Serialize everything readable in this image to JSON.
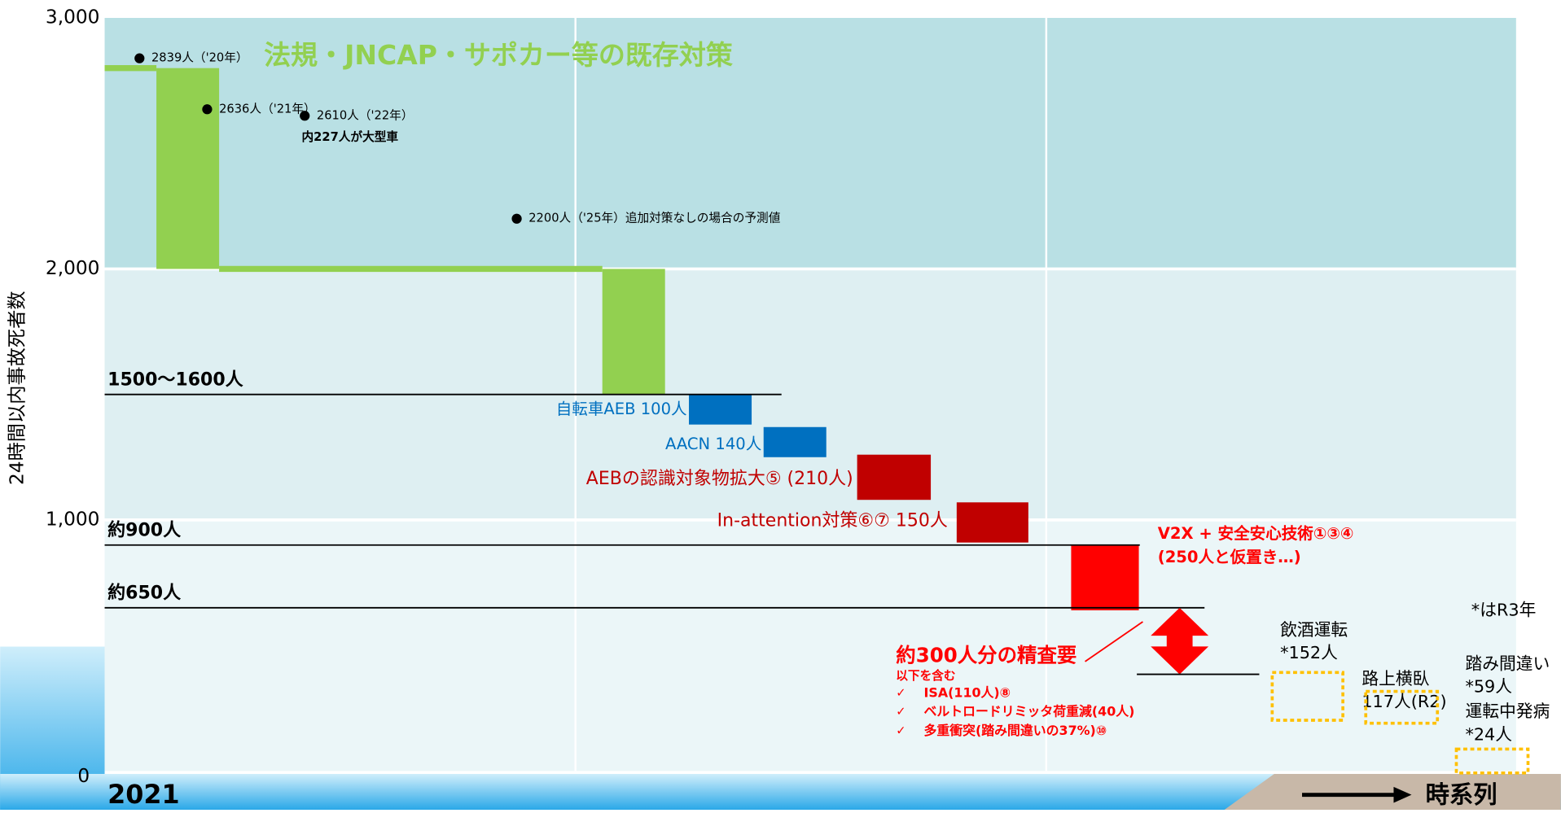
{
  "chart_data": {
    "type": "waterfall",
    "title": "法規・JNCAP・サポカー等の既存対策",
    "ylabel": "24時間以内事故死者数",
    "ylim": [
      0,
      3000
    ],
    "yticks": [
      0,
      {
        "value": 1000,
        "label": "1,000"
      },
      {
        "value": 2000,
        "label": "2,000"
      },
      {
        "value": 3000,
        "label": "3,000"
      }
    ],
    "band_colors": [
      "#ebf6f8",
      "#deeff2",
      "#b9e0e4"
    ],
    "x_start_label": "2021",
    "x_axis_label": "時系列",
    "points": [
      {
        "label": "2839人（'20年）",
        "value": 2839
      },
      {
        "label": "2636人（'21年）",
        "value": 2636
      },
      {
        "label": "2610人（'22年）",
        "value": 2610,
        "note": "内227人が大型車"
      },
      {
        "label": "2200人（'25年）追加対策なしの場合の予測値",
        "value": 2200
      }
    ],
    "steps": [
      {
        "range": [
          2000,
          2800
        ],
        "color": "#92d050"
      },
      {
        "range": [
          1500,
          2000
        ],
        "color": "#92d050"
      },
      {
        "label": "自転車AEB  100人",
        "range": [
          1380,
          1500
        ],
        "color": "#0070c0"
      },
      {
        "label": "AACN  140人",
        "range": [
          1250,
          1370
        ],
        "color": "#0070c0"
      },
      {
        "label": "AEBの認識対象物拡大⑤ (210人)",
        "range": [
          1080,
          1260
        ],
        "color": "#c00000"
      },
      {
        "label": "In-attention対策⑥⑦  150人",
        "range": [
          910,
          1070
        ],
        "color": "#c00000"
      },
      {
        "label": "V2X + 安全安心技術①③④",
        "sublabel": "(250人と仮置き…)",
        "range": [
          640,
          900
        ],
        "color": "#ff0000"
      }
    ],
    "levels": [
      {
        "label": "1500〜1600人",
        "value": 1500
      },
      {
        "label": "約900人",
        "value": 900
      },
      {
        "label": "約650人",
        "value": 650
      }
    ],
    "gap": {
      "range": [
        385,
        650
      ],
      "title": "約300人分の精査要",
      "subtitle": "以下を含む",
      "bullet": "✓",
      "items": [
        "ISA(110人)⑧",
        "ベルトロードリミッタ荷重減(40人)",
        "多重衝突(踏み間違いの37%)⑩"
      ]
    },
    "others": [
      {
        "name": "飲酒運転",
        "value_label": "*152人"
      },
      {
        "name": "路上横臥",
        "value_label": "117人(R2)"
      },
      {
        "name": "踏み間違い",
        "value_label": "*59人"
      },
      {
        "name": "運転中発病",
        "value_label": "*24人"
      }
    ],
    "note": "*はR3年"
  }
}
